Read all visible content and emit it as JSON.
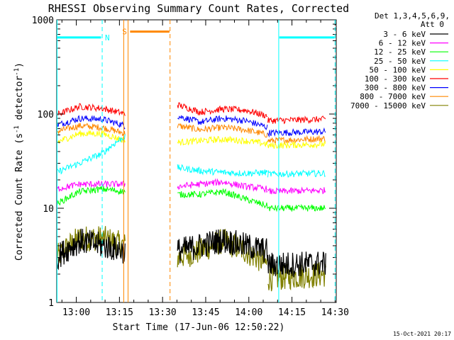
{
  "chart_data": {
    "type": "line",
    "title": "RHESSI Observing Summary Count Rates, Corrected",
    "xlabel": "Start Time (17-Jun-06 12:50:22)",
    "ylabel": "Corrected Count Rate (s^-1 detector^-1)",
    "ylabel_main": "Corrected Count Rate (s",
    "ylabel_sup1": "-1",
    "ylabel_mid": " detector",
    "ylabel_sup2": "-1",
    "ylabel_end": ")",
    "yscale": "log",
    "ylim": [
      1,
      1000
    ],
    "xlim_minutes": [
      -6.8,
      90.4
    ],
    "x_ticks": [
      {
        "label": "13:00",
        "min": 0
      },
      {
        "label": "13:15",
        "min": 15
      },
      {
        "label": "13:30",
        "min": 30
      },
      {
        "label": "13:45",
        "min": 45
      },
      {
        "label": "14:00",
        "min": 60
      },
      {
        "label": "14:15",
        "min": 75
      },
      {
        "label": "14:30",
        "min": 90
      }
    ],
    "y_ticks": [
      {
        "label": "1",
        "value": 1
      },
      {
        "label": "10",
        "value": 10
      },
      {
        "label": "100",
        "value": 100
      },
      {
        "label": "1000",
        "value": 1000
      }
    ],
    "legend_title_1": "Det 1,3,4,5,6,9,",
    "legend_title_2": "Att 0",
    "series": [
      {
        "name": "3 - 6 keV",
        "color": "#000000",
        "seg1": [
          3,
          4.5,
          4,
          3.5
        ],
        "seg2": [
          3.5,
          4.0,
          4.6,
          4.0,
          3.5
        ],
        "seg3": [
          2.5,
          2.6
        ]
      },
      {
        "name": "6 - 12 keV",
        "color": "#ff00ff",
        "seg1": [
          16,
          18,
          18,
          18
        ],
        "seg2": [
          17,
          18,
          19,
          17,
          16
        ],
        "seg3": [
          15,
          15.5
        ]
      },
      {
        "name": "12 - 25 keV",
        "color": "#00ff00",
        "seg1": [
          11,
          15,
          16,
          15
        ],
        "seg2": [
          14,
          14,
          15,
          12.5,
          10.5
        ],
        "seg3": [
          10,
          10
        ]
      },
      {
        "name": "25 - 50 keV",
        "color": "#00ffff",
        "seg1": [
          24,
          30,
          38,
          58
        ],
        "seg2": [
          27,
          25,
          24,
          23.5,
          24
        ],
        "seg3": [
          23,
          23.5
        ]
      },
      {
        "name": "50 - 100 keV",
        "color": "#ffff00",
        "seg1": [
          50,
          62,
          62,
          52
        ],
        "seg2": [
          50,
          52,
          54,
          52,
          48
        ],
        "seg3": [
          46,
          48
        ]
      },
      {
        "name": "100 - 300 keV",
        "color": "#ff0000",
        "seg1": [
          98,
          120,
          115,
          100
        ],
        "seg2": [
          125,
          105,
          113,
          110,
          95
        ],
        "seg3": [
          85,
          88
        ]
      },
      {
        "name": "300 - 800 keV",
        "color": "#0000ff",
        "seg1": [
          76,
          90,
          88,
          75
        ],
        "seg2": [
          95,
          82,
          90,
          85,
          72
        ],
        "seg3": [
          63,
          65
        ]
      },
      {
        "name": "800 - 7000 keV",
        "color": "#ff8800",
        "seg1": [
          65,
          75,
          72,
          62
        ],
        "seg2": [
          75,
          68,
          72,
          68,
          60
        ],
        "seg3": [
          52,
          55
        ]
      },
      {
        "name": "7000 - 15000 keV",
        "color": "#808000",
        "seg1": [
          3,
          4.8,
          4.8,
          4
        ],
        "seg2": [
          3,
          3.5,
          4.5,
          3.5,
          2.5
        ],
        "seg3": [
          1.8,
          2.0
        ]
      }
    ],
    "segments_minutes": {
      "seg1": [
        -6.8,
        17.0
      ],
      "seg2": [
        35.2,
        66.6
      ],
      "seg3": [
        66.6,
        86.8
      ]
    },
    "markers": [
      {
        "type": "solid",
        "color": "#00ffff",
        "min": -6.8
      },
      {
        "type": "dashed",
        "color": "#00ffff",
        "min": 9.0
      },
      {
        "type": "solid",
        "color": "#ff8800",
        "min": 16.5
      },
      {
        "type": "solid",
        "color": "#ff8800",
        "min": 18.0
      },
      {
        "type": "dashed",
        "color": "#ff8800",
        "min": 32.6
      },
      {
        "type": "solid",
        "color": "#00ffff",
        "min": 70.4
      },
      {
        "type": "dashed",
        "color": "#00ffff",
        "min": 90.0
      }
    ],
    "flags": [
      {
        "color": "#00ffff",
        "from": -6.8,
        "to": 8.6,
        "value": 650,
        "label": "N",
        "label_min": 10.8
      },
      {
        "color": "#ff8800",
        "from": 18.7,
        "to": 32.4,
        "value": 750,
        "label": "S",
        "label_min": 16.8
      },
      {
        "color": "#00ffff",
        "from": 70.6,
        "to": 89.8,
        "value": 650,
        "label": "",
        "label_min": 0
      }
    ],
    "footer_date": "15-Oct-2021 20:17"
  }
}
